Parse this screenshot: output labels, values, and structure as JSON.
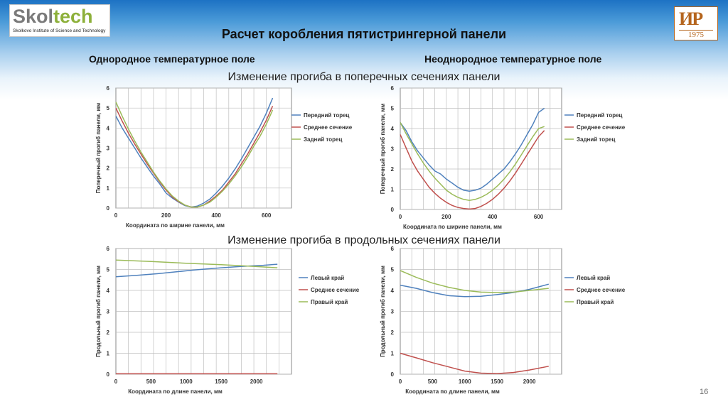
{
  "header": {
    "logo_left": {
      "word_a": "Skol",
      "word_b": "tech",
      "subtitle": "Skolkovo Institute of Science and Technology"
    },
    "logo_right": {
      "mark": "ИР",
      "year": "1975"
    },
    "title": "Расчет коробления пятистрингерной панели",
    "col_left": "Однородное температурное поле",
    "col_right": "Неоднородное температурное поле",
    "section_top": "Изменение прогиба в поперечных сечениях панели",
    "section_bottom": "Изменение прогиба в продольных сечениях панели"
  },
  "page_number": "16",
  "colors": {
    "blue": "#4f81bd",
    "red": "#c0504d",
    "green": "#9bbb59",
    "grid": "#bfbfbf"
  },
  "chart_data": [
    {
      "id": "transverse-uniform",
      "type": "line",
      "xlabel": "Координата по ширине панели, мм",
      "ylabel": "Поперечный прогиб панели, мм",
      "xlim": [
        0,
        700
      ],
      "ylim": [
        0,
        6
      ],
      "xticks": [
        0,
        200,
        400,
        600
      ],
      "yticks": [
        0,
        1,
        2,
        3,
        4,
        5,
        6
      ],
      "legend": "right",
      "series": [
        {
          "name": "Передний торец",
          "color": "#4f81bd",
          "x": [
            0,
            25,
            50,
            75,
            100,
            125,
            150,
            175,
            200,
            225,
            250,
            275,
            300,
            325,
            350,
            375,
            400,
            425,
            450,
            475,
            500,
            525,
            550,
            575,
            600,
            625
          ],
          "y": [
            4.6,
            4.0,
            3.5,
            3.0,
            2.5,
            2.05,
            1.6,
            1.2,
            0.75,
            0.5,
            0.3,
            0.12,
            0.05,
            0.1,
            0.25,
            0.45,
            0.75,
            1.1,
            1.5,
            1.95,
            2.45,
            3.0,
            3.55,
            4.1,
            4.75,
            5.5
          ]
        },
        {
          "name": "Среднее сечение",
          "color": "#c0504d",
          "x": [
            0,
            25,
            50,
            75,
            100,
            125,
            150,
            175,
            200,
            225,
            250,
            275,
            300,
            325,
            350,
            375,
            400,
            425,
            450,
            475,
            500,
            525,
            550,
            575,
            600,
            625
          ],
          "y": [
            5.0,
            4.35,
            3.75,
            3.2,
            2.7,
            2.2,
            1.75,
            1.3,
            0.9,
            0.55,
            0.32,
            0.15,
            0.05,
            0.05,
            0.15,
            0.35,
            0.6,
            0.9,
            1.3,
            1.7,
            2.2,
            2.7,
            3.25,
            3.8,
            4.4,
            5.1
          ]
        },
        {
          "name": "Задний торец",
          "color": "#9bbb59",
          "x": [
            0,
            25,
            50,
            75,
            100,
            125,
            150,
            175,
            200,
            225,
            250,
            275,
            300,
            325,
            350,
            375,
            400,
            425,
            450,
            475,
            500,
            525,
            550,
            575,
            600,
            625
          ],
          "y": [
            5.3,
            4.6,
            3.95,
            3.35,
            2.8,
            2.3,
            1.8,
            1.35,
            0.95,
            0.6,
            0.35,
            0.15,
            0.05,
            0.05,
            0.15,
            0.3,
            0.55,
            0.85,
            1.2,
            1.6,
            2.05,
            2.55,
            3.1,
            3.6,
            4.2,
            4.9
          ]
        }
      ]
    },
    {
      "id": "transverse-nonuniform",
      "type": "line",
      "xlabel": "Координата по ширине панели, мм",
      "ylabel": "Поперечный прогиб панели, мм",
      "xlim": [
        0,
        700
      ],
      "ylim": [
        0,
        6
      ],
      "xticks": [
        0,
        200,
        400,
        600
      ],
      "yticks": [
        0,
        1,
        2,
        3,
        4,
        5,
        6
      ],
      "legend": "right",
      "series": [
        {
          "name": "Передний торец",
          "color": "#4f81bd",
          "x": [
            0,
            25,
            50,
            75,
            100,
            125,
            150,
            175,
            200,
            225,
            250,
            275,
            300,
            325,
            350,
            375,
            400,
            425,
            450,
            475,
            500,
            525,
            550,
            575,
            600,
            625
          ],
          "y": [
            4.3,
            3.9,
            3.35,
            2.9,
            2.55,
            2.2,
            1.9,
            1.75,
            1.5,
            1.3,
            1.1,
            0.95,
            0.9,
            0.95,
            1.05,
            1.25,
            1.5,
            1.75,
            2.0,
            2.35,
            2.75,
            3.2,
            3.7,
            4.2,
            4.8,
            5.0
          ]
        },
        {
          "name": "Среднее сечение",
          "color": "#c0504d",
          "x": [
            0,
            25,
            50,
            75,
            100,
            125,
            150,
            175,
            200,
            225,
            250,
            275,
            300,
            325,
            350,
            375,
            400,
            425,
            450,
            475,
            500,
            525,
            550,
            575,
            600,
            625
          ],
          "y": [
            3.7,
            3.05,
            2.4,
            1.9,
            1.5,
            1.1,
            0.8,
            0.55,
            0.35,
            0.2,
            0.1,
            0.05,
            0.02,
            0.05,
            0.15,
            0.3,
            0.5,
            0.75,
            1.05,
            1.4,
            1.8,
            2.25,
            2.7,
            3.15,
            3.6,
            3.9
          ]
        },
        {
          "name": "Задний торец",
          "color": "#9bbb59",
          "x": [
            0,
            25,
            50,
            75,
            100,
            125,
            150,
            175,
            200,
            225,
            250,
            275,
            300,
            325,
            350,
            375,
            400,
            425,
            450,
            475,
            500,
            525,
            550,
            575,
            600,
            625
          ],
          "y": [
            4.3,
            3.75,
            3.25,
            2.75,
            2.3,
            1.9,
            1.55,
            1.25,
            0.95,
            0.75,
            0.6,
            0.5,
            0.45,
            0.5,
            0.6,
            0.75,
            0.95,
            1.2,
            1.5,
            1.85,
            2.25,
            2.7,
            3.15,
            3.6,
            4.0,
            4.1
          ]
        }
      ]
    },
    {
      "id": "longitudinal-uniform",
      "type": "line",
      "xlabel": "Координата по длине панели, мм",
      "ylabel": "Продольный прогиб панели, мм",
      "xlim": [
        0,
        2500
      ],
      "ylim": [
        0,
        6
      ],
      "xticks": [
        0,
        500,
        1000,
        1500,
        2000
      ],
      "yticks": [
        0,
        1,
        2,
        3,
        4,
        5,
        6
      ],
      "legend": "right",
      "series": [
        {
          "name": "Левый край",
          "color": "#4f81bd",
          "x": [
            0,
            300,
            600,
            900,
            1100,
            1200,
            1500,
            1800,
            2100,
            2300
          ],
          "y": [
            4.65,
            4.72,
            4.8,
            4.9,
            4.97,
            5.0,
            5.08,
            5.15,
            5.2,
            5.25
          ]
        },
        {
          "name": "Среднее сечение",
          "color": "#c0504d",
          "x": [
            0,
            500,
            1000,
            1500,
            2000,
            2300
          ],
          "y": [
            0.02,
            0.02,
            0.02,
            0.02,
            0.02,
            0.02
          ]
        },
        {
          "name": "Правый край",
          "color": "#9bbb59",
          "x": [
            0,
            500,
            1000,
            1500,
            2000,
            2300
          ],
          "y": [
            5.45,
            5.38,
            5.3,
            5.23,
            5.14,
            5.08
          ]
        }
      ]
    },
    {
      "id": "longitudinal-nonuniform",
      "type": "line",
      "xlabel": "Координата по длине панели, мм",
      "ylabel": "Продольный прогиб панели, мм",
      "xlim": [
        0,
        2500
      ],
      "ylim": [
        0,
        6
      ],
      "xticks": [
        0,
        500,
        1000,
        1500,
        2000
      ],
      "yticks": [
        0,
        1,
        2,
        3,
        4,
        5,
        6
      ],
      "legend": "right",
      "series": [
        {
          "name": "Левый край",
          "color": "#4f81bd",
          "x": [
            0,
            250,
            500,
            750,
            1000,
            1250,
            1500,
            1750,
            2000,
            2300
          ],
          "y": [
            4.25,
            4.1,
            3.9,
            3.75,
            3.7,
            3.72,
            3.8,
            3.9,
            4.05,
            4.3
          ]
        },
        {
          "name": "Среднее сечение",
          "color": "#c0504d",
          "x": [
            0,
            250,
            500,
            750,
            1000,
            1250,
            1500,
            1750,
            2000,
            2300
          ],
          "y": [
            1.0,
            0.78,
            0.55,
            0.35,
            0.15,
            0.05,
            0.03,
            0.08,
            0.2,
            0.38
          ]
        },
        {
          "name": "Правый край",
          "color": "#9bbb59",
          "x": [
            0,
            250,
            500,
            750,
            1000,
            1250,
            1500,
            1750,
            2000,
            2300
          ],
          "y": [
            4.95,
            4.62,
            4.35,
            4.15,
            4.0,
            3.92,
            3.9,
            3.92,
            4.0,
            4.1
          ]
        }
      ]
    }
  ]
}
